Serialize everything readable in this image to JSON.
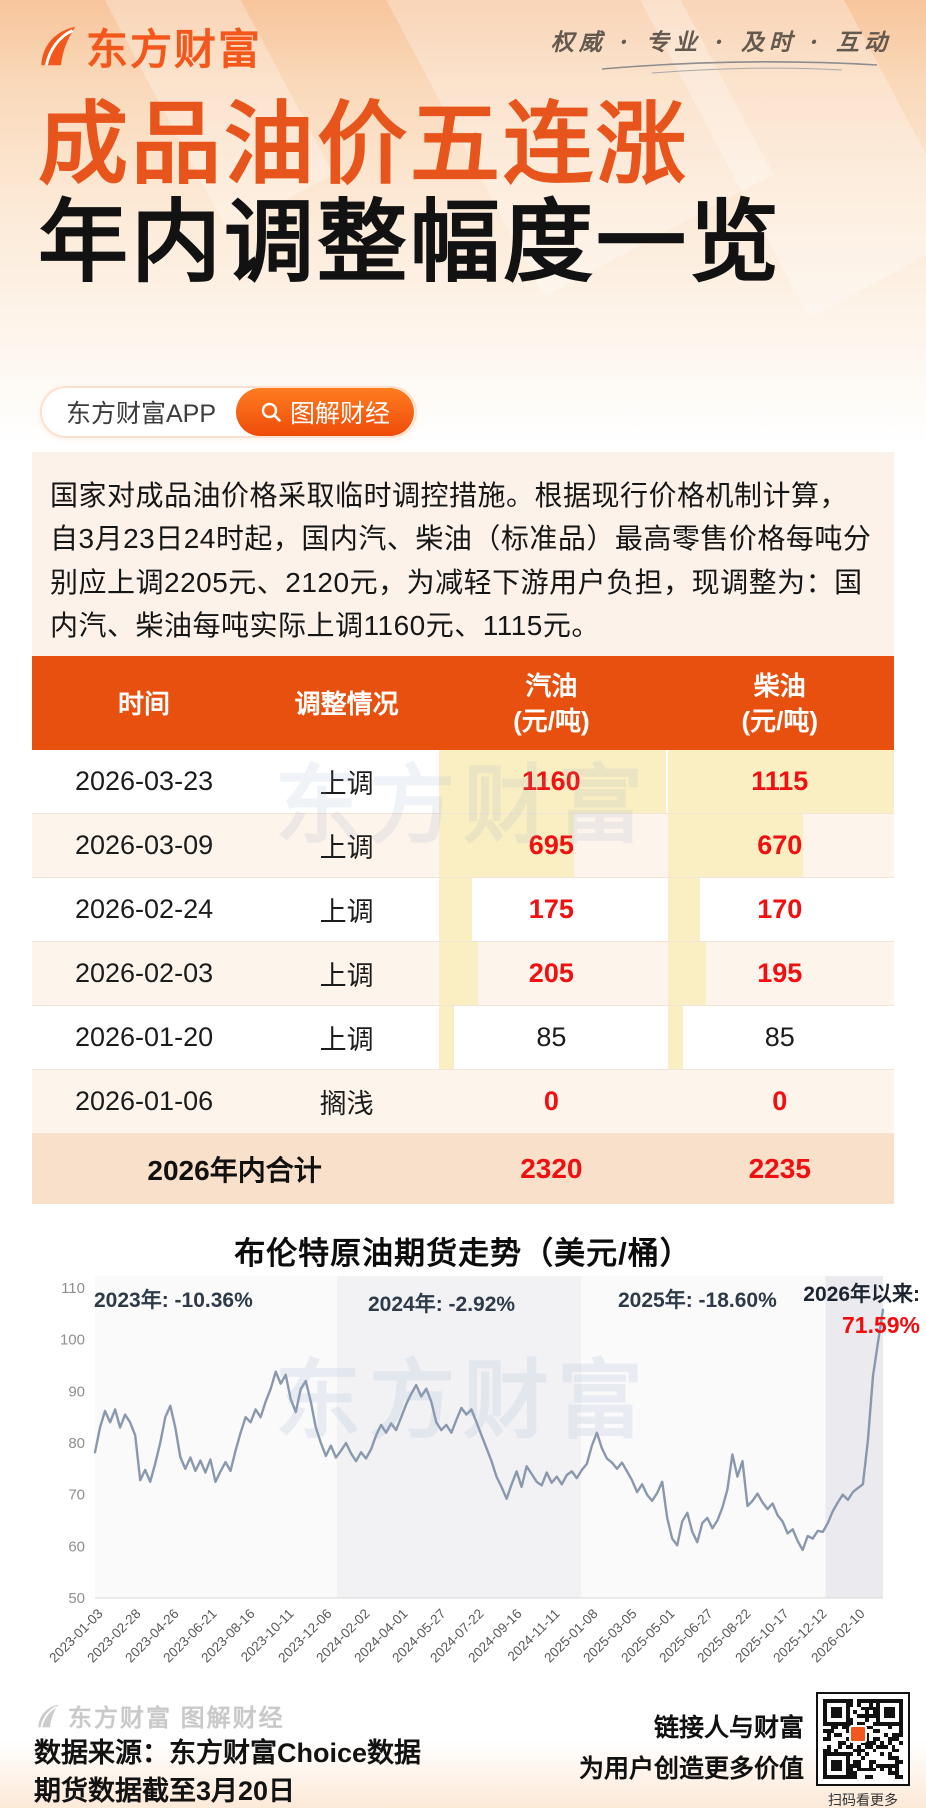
{
  "brand": {
    "name": "东方财富",
    "tagline": "权威 · 专业 · 及时 · 互动",
    "accent_color": "#f3571c"
  },
  "hero": {
    "title_line1": "成品油价五连涨",
    "title_line2": "年内调整幅度一览",
    "badge_app": "东方财富APP",
    "badge_channel": "图解财经"
  },
  "intro": "国家对成品油价格采取临时调控措施。根据现行价格机制计算，自3月23日24时起，国内汽、柴油（标准品）最高零售价格每吨分别应上调2205元、2120元，为减轻下游用户负担，现调整为：国内汽、柴油每吨实际上调1160元、1115元。",
  "table": {
    "col_time": "时间",
    "col_action": "调整情况",
    "col_gas": "汽油",
    "col_gas_unit": "(元/吨)",
    "col_diesel": "柴油",
    "col_diesel_unit": "(元/吨)",
    "header_color": "#e7500e",
    "value_color": "#f01010",
    "bar_color": "#faefc3",
    "rows": [
      {
        "date": "2026-03-23",
        "action": "上调",
        "gas": "1160",
        "diesel": "1115",
        "gas_pct": 100,
        "diesel_pct": 100
      },
      {
        "date": "2026-03-09",
        "action": "上调",
        "gas": "695",
        "diesel": "670",
        "gas_pct": 59.9,
        "diesel_pct": 60.1
      },
      {
        "date": "2026-02-24",
        "action": "上调",
        "gas": "175",
        "diesel": "170",
        "gas_pct": 15.1,
        "diesel_pct": 15.2
      },
      {
        "date": "2026-02-03",
        "action": "上调",
        "gas": "205",
        "diesel": "195",
        "gas_pct": 17.7,
        "diesel_pct": 17.5
      },
      {
        "date": "2026-01-20",
        "action": "上调",
        "gas": "85",
        "diesel": "85",
        "gas_pct": 7.3,
        "diesel_pct": 7.6
      },
      {
        "date": "2026-01-06",
        "action": "搁浅",
        "gas": "0",
        "diesel": "0",
        "gas_pct": 0,
        "diesel_pct": 0
      }
    ],
    "total_label": "2026年内合计",
    "total_gas": "2320",
    "total_diesel": "2235"
  },
  "chart_data": {
    "type": "line",
    "title": "布伦特原油期货走势（美元/桶）",
    "ylabel": "美元/桶",
    "ylim": [
      50,
      110
    ],
    "yticks": [
      110,
      100,
      90,
      80,
      70,
      60,
      50
    ],
    "grid": false,
    "line_color": "#8a98ae",
    "band_splits": [
      0,
      0.307,
      0.617,
      0.927,
      1
    ],
    "band_colors": [
      "#fafafb",
      "#f2f2f5",
      "#fafafb",
      "#eaeaef"
    ],
    "x_tick_labels": [
      "2023-01-03",
      "2023-02-28",
      "2023-04-26",
      "2023-06-21",
      "2023-08-16",
      "2023-10-11",
      "2023-12-06",
      "2024-02-02",
      "2024-04-01",
      "2024-05-27",
      "2024-07-22",
      "2024-09-16",
      "2024-11-11",
      "2025-01-08",
      "2025-03-05",
      "2025-05-01",
      "2025-06-27",
      "2025-08-22",
      "2025-10-17",
      "2025-12-12",
      "2026-02-10"
    ],
    "x_tick_step_days": 40,
    "x_total_days": 827,
    "annotations": [
      {
        "text": "2023年: -10.36%"
      },
      {
        "text": "2024年: -2.92%"
      },
      {
        "text": "2025年: -18.60%"
      },
      {
        "text": "2026年以来:",
        "value": "71.59%",
        "value_color": "#f20d0d"
      }
    ],
    "series": [
      {
        "name": "布伦特原油期货",
        "values": [
          78.2,
          83,
          86.2,
          84,
          86.5,
          83,
          85.5,
          84,
          81.5,
          72.8,
          74.8,
          72.5,
          76,
          80,
          85,
          87.2,
          83,
          77.3,
          75,
          77.2,
          74.6,
          76.6,
          74.3,
          76.8,
          72.5,
          74.5,
          76.3,
          74.6,
          78.5,
          82,
          85,
          84,
          86.5,
          85,
          88,
          90.5,
          93.8,
          91.5,
          93.2,
          88.5,
          86,
          90.5,
          92,
          88,
          83,
          80,
          77.5,
          79.5,
          77.2,
          78.5,
          80,
          78,
          76.5,
          78.2,
          77,
          78.8,
          81.5,
          83.5,
          82,
          83.8,
          82.5,
          85,
          87.5,
          89.5,
          91.2,
          89,
          90.5,
          88,
          84,
          82.5,
          83.5,
          82,
          84.5,
          86.8,
          85.5,
          86.5,
          84,
          81.5,
          79,
          76.5,
          73.5,
          71.5,
          69.2,
          72,
          74.5,
          71.5,
          75.5,
          74,
          72.5,
          71.8,
          74.3,
          72.3,
          73.5,
          72,
          73.8,
          74.5,
          73.2,
          74.8,
          76,
          79.5,
          82,
          79,
          77,
          76.2,
          75,
          76.2,
          74.5,
          72.8,
          70.5,
          72,
          70,
          68.8,
          70.3,
          72.5,
          65.5,
          61.5,
          60.2,
          64.8,
          66.5,
          62.8,
          60.8,
          64.5,
          65.5,
          63.5,
          65,
          67.5,
          71,
          77.8,
          73.5,
          76.5,
          67.8,
          68.8,
          70.2,
          68.5,
          67.2,
          68.3,
          66,
          64.8,
          62.5,
          63.3,
          61,
          59.3,
          62,
          61.5,
          63,
          62.8,
          64.5,
          66.8,
          68.5,
          70,
          69,
          70.5,
          71.3,
          72,
          80.5,
          93,
          99.5,
          105.8
        ]
      }
    ]
  },
  "footer": {
    "ghost": "东方财富 图解财经",
    "source_line1": "数据来源：东方财富Choice数据",
    "source_line2": "期货数据截至3月20日",
    "slogan_line1": "链接人与财富",
    "slogan_line2": "为用户创造更多价值",
    "qr_caption": "扫码看更多"
  },
  "watermark": "东方财富"
}
